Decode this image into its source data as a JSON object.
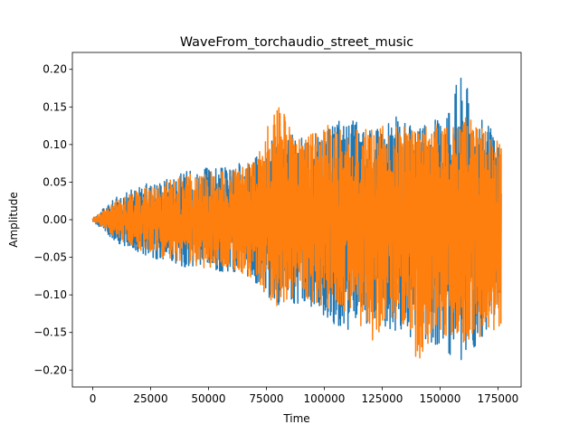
{
  "chart_data": {
    "type": "line",
    "title": "WaveFrom_torchaudio_street_music",
    "xlabel": "Time",
    "ylabel": "Amplitude",
    "xlim": [
      -8800,
      185000
    ],
    "ylim": [
      -0.2225,
      0.2225
    ],
    "x_ticks": [
      0,
      25000,
      50000,
      75000,
      100000,
      125000,
      150000,
      175000
    ],
    "y_ticks": [
      -0.2,
      -0.15,
      -0.1,
      -0.05,
      0.0,
      0.05,
      0.1,
      0.15,
      0.2
    ],
    "x_tick_labels": [
      "0",
      "25000",
      "50000",
      "75000",
      "100000",
      "125000",
      "150000",
      "175000"
    ],
    "y_tick_labels": [
      "−0.20",
      "−0.15",
      "−0.10",
      "−0.05",
      "0.00",
      "0.05",
      "0.10",
      "0.15",
      "0.20"
    ],
    "grid": false,
    "series": [
      {
        "color": "#1f77b4",
        "x": [
          0,
          10000,
          20000,
          30000,
          40000,
          50000,
          60000,
          70000,
          80000,
          90000,
          100000,
          110000,
          120000,
          130000,
          140000,
          150000,
          155000,
          160000,
          165000,
          170000,
          176400
        ],
        "upper": [
          0.002,
          0.03,
          0.045,
          0.055,
          0.065,
          0.07,
          0.07,
          0.085,
          0.12,
          0.11,
          0.12,
          0.14,
          0.12,
          0.14,
          0.12,
          0.14,
          0.18,
          0.2,
          0.15,
          0.13,
          0.1
        ],
        "lower": [
          -0.002,
          -0.03,
          -0.045,
          -0.055,
          -0.065,
          -0.07,
          -0.07,
          -0.085,
          -0.12,
          -0.11,
          -0.13,
          -0.15,
          -0.14,
          -0.15,
          -0.16,
          -0.17,
          -0.19,
          -0.205,
          -0.17,
          -0.15,
          -0.12
        ]
      },
      {
        "color": "#ff7f0e",
        "x": [
          0,
          10000,
          20000,
          30000,
          40000,
          50000,
          60000,
          70000,
          80000,
          90000,
          100000,
          110000,
          120000,
          130000,
          140000,
          150000,
          155000,
          160000,
          165000,
          170000,
          176400
        ],
        "upper": [
          0.002,
          0.025,
          0.04,
          0.05,
          0.06,
          0.065,
          0.065,
          0.08,
          0.16,
          0.11,
          0.13,
          0.12,
          0.12,
          0.13,
          0.12,
          0.14,
          0.13,
          0.15,
          0.13,
          0.12,
          0.1
        ],
        "lower": [
          -0.002,
          -0.025,
          -0.04,
          -0.05,
          -0.06,
          -0.065,
          -0.065,
          -0.08,
          -0.12,
          -0.1,
          -0.12,
          -0.13,
          -0.17,
          -0.13,
          -0.19,
          -0.15,
          -0.16,
          -0.17,
          -0.16,
          -0.15,
          -0.145
        ]
      }
    ]
  }
}
